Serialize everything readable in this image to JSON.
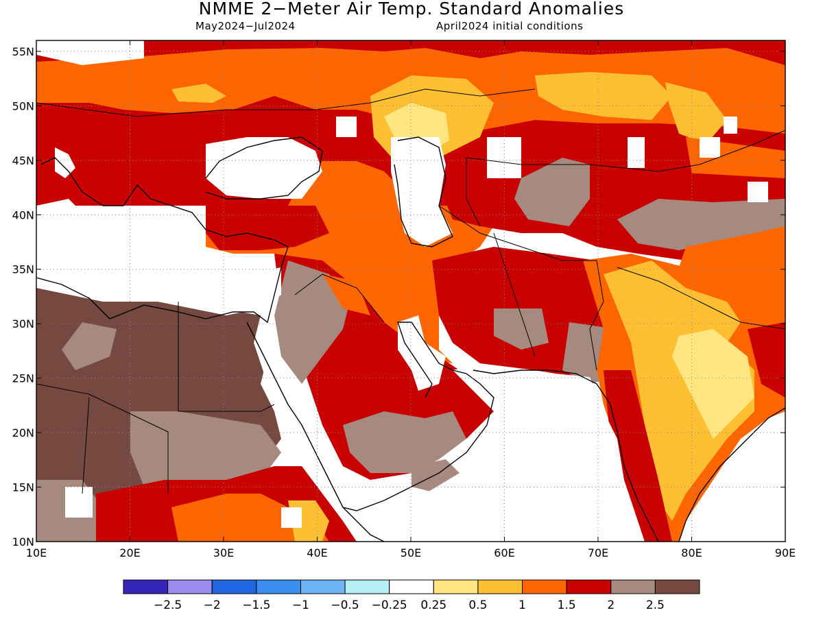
{
  "title": "NMME 2−Meter Air Temp. Standard Anomalies",
  "subtitle_period": "May2024−Jul2024",
  "subtitle_init": "April2024 initial conditions",
  "map": {
    "lon_range": [
      10,
      90
    ],
    "lat_range": [
      10,
      56
    ],
    "lon_ticks": [
      10,
      20,
      30,
      40,
      50,
      60,
      70,
      80,
      90
    ],
    "lat_ticks": [
      10,
      15,
      20,
      25,
      30,
      35,
      40,
      45,
      50,
      55
    ],
    "lon_tick_labels": [
      "10E",
      "20E",
      "30E",
      "40E",
      "50E",
      "60E",
      "70E",
      "80E",
      "90E"
    ],
    "lat_tick_labels": [
      "10N",
      "15N",
      "20N",
      "25N",
      "30N",
      "35N",
      "40N",
      "45N",
      "50N",
      "55N"
    ],
    "gridlines": "dotted"
  },
  "legend": {
    "colors": [
      "#3326b8",
      "#9d8cf0",
      "#1f66e0",
      "#3a8ff0",
      "#6cb4f4",
      "#b4f0f4",
      "#ffffff",
      "#ffe680",
      "#ffbf33",
      "#ff6600",
      "#c80000",
      "#a68a80",
      "#75493f"
    ],
    "labels": [
      "−2.5",
      "−2",
      "−1.5",
      "−1",
      "−0.5",
      "−0.25",
      "0.25",
      "0.5",
      "1",
      "1.5",
      "2",
      "2.5"
    ]
  }
}
